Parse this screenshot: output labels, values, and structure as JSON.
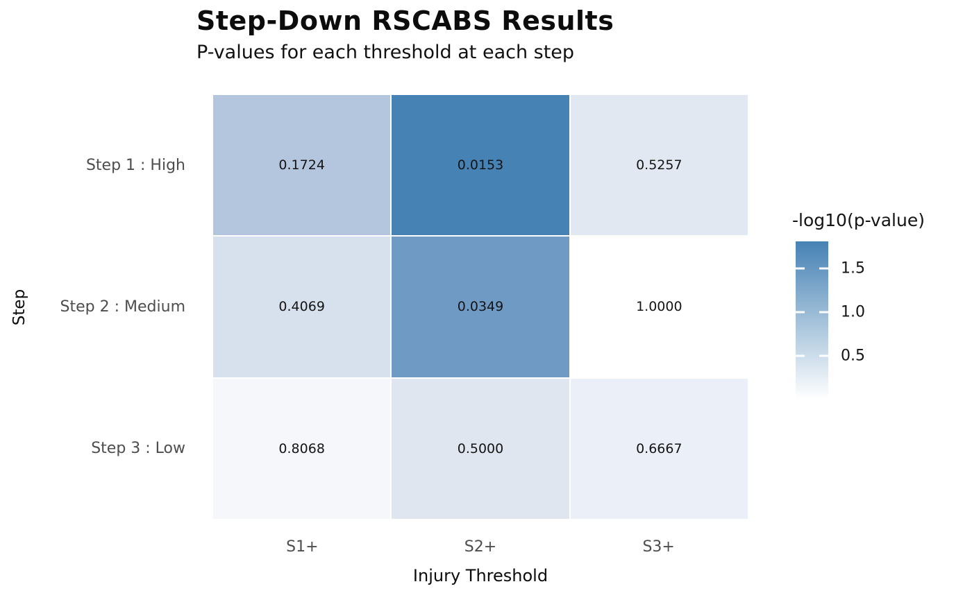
{
  "title": "Step-Down RSCABS Results",
  "subtitle": "P-values for each threshold at each step",
  "axes": {
    "x_title": "Injury Threshold",
    "y_title": "Step",
    "x_ticks": [
      "S1+",
      "S2+",
      "S3+"
    ],
    "y_ticks": [
      "Step 1 : High",
      "Step 2 : Medium",
      "Step 3 : Low"
    ]
  },
  "legend": {
    "title": "-log10(p-value)",
    "ticks": [
      {
        "label": "1.5",
        "pos_pct": 17.4
      },
      {
        "label": "1.0",
        "pos_pct": 44.9
      },
      {
        "label": "0.5",
        "pos_pct": 72.5
      }
    ],
    "gradient_top": "#4682b4",
    "gradient_bottom": "#ffffff"
  },
  "chart_data": {
    "type": "heatmap",
    "title": "Step-Down RSCABS Results",
    "subtitle": "P-values for each threshold at each step",
    "xlabel": "Injury Threshold",
    "ylabel": "Step",
    "columns": [
      "S1+",
      "S2+",
      "S3+"
    ],
    "rows": [
      "Step 1 : High",
      "Step 2 : Medium",
      "Step 3 : Low"
    ],
    "values": [
      [
        0.1724,
        0.0153,
        0.5257
      ],
      [
        0.4069,
        0.0349,
        1.0
      ],
      [
        0.8068,
        0.5,
        0.6667
      ]
    ],
    "value_labels": [
      [
        "0.1724",
        "0.0153",
        "0.5257"
      ],
      [
        "0.4069",
        "0.0349",
        "1.0000"
      ],
      [
        "0.8068",
        "0.5000",
        "0.6667"
      ]
    ],
    "cell_colors": [
      [
        "#b4c6dd",
        "#4682b4",
        "#e2e8f1"
      ],
      [
        "#d7e0ed",
        "#6e9ac4",
        "#ffffff"
      ],
      [
        "#f5f7fb",
        "#dfe6f0",
        "#ebeff7"
      ]
    ],
    "colorbar": {
      "label": "-log10(p-value)",
      "tick_values": [
        1.5,
        1.0,
        0.5
      ],
      "range": [
        0,
        1.815
      ],
      "colormap": "white-to-steelblue",
      "legend_position": "right"
    },
    "grid": false
  }
}
